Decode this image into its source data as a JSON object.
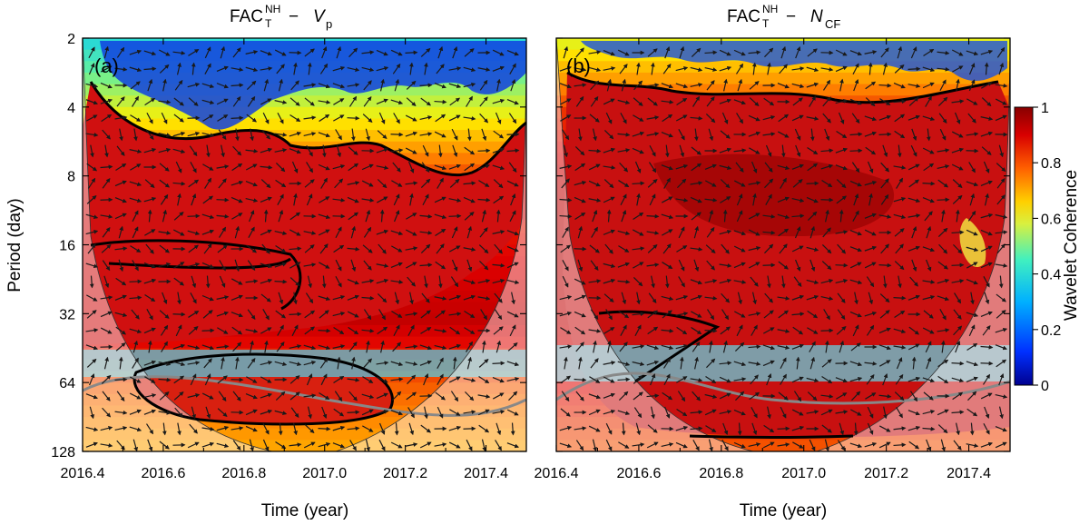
{
  "chart_data": [
    {
      "type": "heatmap",
      "panel_label": "(a)",
      "title_main": "FAC",
      "title_sup": "NH",
      "title_sub": "T",
      "title_rest": " − ",
      "title_var": "V",
      "title_var_sub": "p",
      "xlabel": "Time (year)",
      "ylabel": "Period (day)",
      "xlim": [
        2016.4,
        2017.5
      ],
      "ylim": [
        2,
        128
      ],
      "y_scale": "log2",
      "x_ticks": [
        "2016.4",
        "2016.6",
        "2016.8",
        "2017.0",
        "2017.2",
        "2017.4"
      ],
      "y_ticks": [
        "2",
        "4",
        "8",
        "16",
        "32",
        "64",
        "128"
      ],
      "coherence_overview": {
        "period_rows": [
          2,
          4,
          8,
          16,
          32,
          64,
          128
        ],
        "mean_coherence": [
          0.35,
          0.55,
          0.8,
          0.85,
          0.9,
          0.75,
          0.65
        ]
      }
    },
    {
      "type": "heatmap",
      "panel_label": "(b)",
      "title_main": "FAC",
      "title_sup": "NH",
      "title_sub": "T",
      "title_rest": " − ",
      "title_var": "N",
      "title_var_sub": "CF",
      "xlabel": "Time (year)",
      "xlim": [
        2016.4,
        2017.5
      ],
      "ylim": [
        2,
        128
      ],
      "y_scale": "log2",
      "x_ticks": [
        "2016.4",
        "2016.6",
        "2016.8",
        "2017.0",
        "2017.2",
        "2017.4"
      ],
      "coherence_overview": {
        "period_rows": [
          2,
          4,
          8,
          16,
          32,
          64,
          128
        ],
        "mean_coherence": [
          0.55,
          0.8,
          0.9,
          0.92,
          0.9,
          0.85,
          0.75
        ]
      }
    }
  ],
  "colorbar": {
    "label": "Wavelet Coherence",
    "range": [
      0,
      1
    ],
    "ticks": [
      "0",
      "0.2",
      "0.4",
      "0.6",
      "0.8",
      "1"
    ],
    "colormap": [
      "#00008f",
      "#0050ff",
      "#00c8ff",
      "#60f0a0",
      "#fff000",
      "#ff8000",
      "#e00000",
      "#800000"
    ]
  },
  "colors": {
    "cone_shade": "#f2b0b0",
    "significance_contour": "#000000",
    "cone_contour": "#808080",
    "arrow": "#1a1a1a"
  }
}
